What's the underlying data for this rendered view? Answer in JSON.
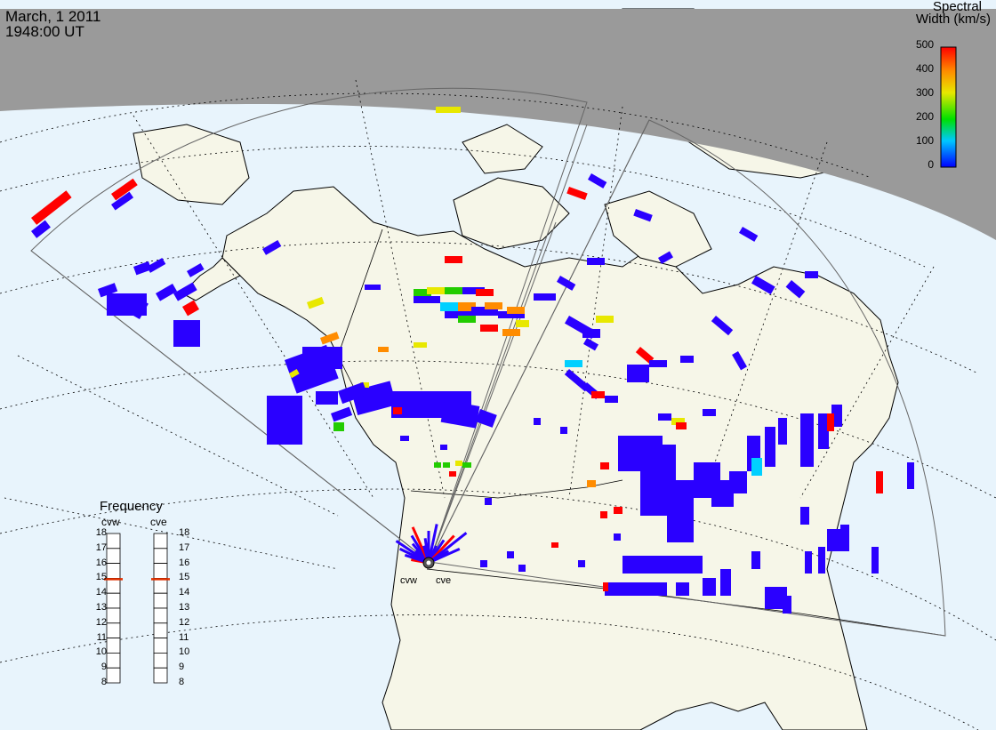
{
  "header": {
    "date": "March, 1 2011",
    "time": "1948:00 UT"
  },
  "colorbar": {
    "title_line1": "Spectral",
    "title_line2": "Width (km/s)",
    "ticks": [
      "500",
      "400",
      "300",
      "200",
      "100",
      "0"
    ],
    "range": [
      0,
      500
    ],
    "colors": [
      "#0000ff",
      "#00c8ff",
      "#00e000",
      "#e8e800",
      "#ff8c00",
      "#ff0000"
    ]
  },
  "frequency_panel": {
    "title": "Frequency",
    "radars": [
      {
        "label": "cvw",
        "value": 15
      },
      {
        "label": "cve",
        "value": 15
      }
    ],
    "scale": [
      "18",
      "17",
      "16",
      "15",
      "14",
      "13",
      "12",
      "11",
      "10",
      "9",
      "8"
    ]
  },
  "radar_sites": [
    {
      "label": "cvw"
    },
    {
      "label": "cve"
    }
  ],
  "colors": {
    "night": "#9a9a9a",
    "ocean": "#e8f4fc",
    "land": "#f6f6e8",
    "scatter": "#2a00ff",
    "marker": "#e03000"
  }
}
